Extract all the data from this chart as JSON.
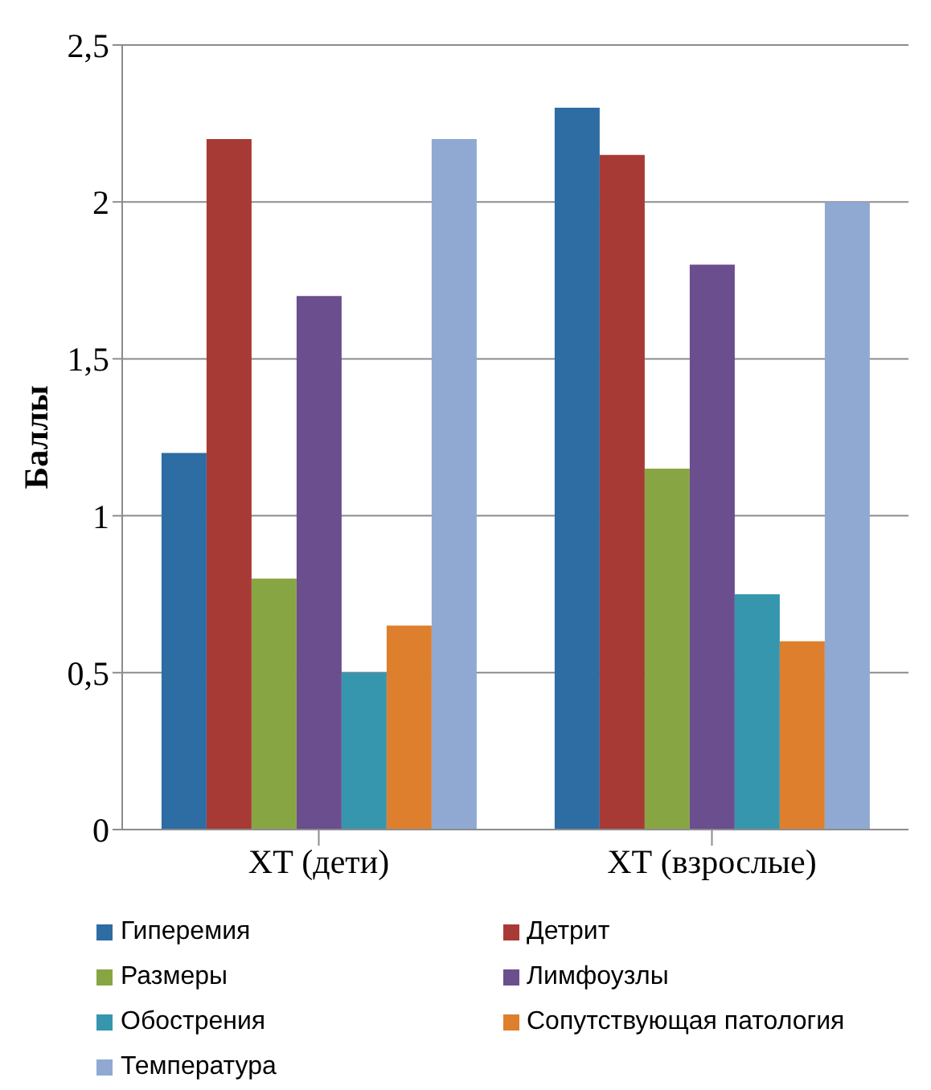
{
  "chart_data": {
    "type": "bar",
    "ylabel": "Баллы",
    "categories": [
      "ХТ (дети)",
      "ХТ (взрослые)"
    ],
    "series": [
      {
        "name": "Гиперемия",
        "color": "#2e6ca4",
        "values": [
          1.2,
          2.3
        ]
      },
      {
        "name": "Детрит",
        "color": "#a83a36",
        "values": [
          2.2,
          2.15
        ]
      },
      {
        "name": "Размеры",
        "color": "#88a544",
        "values": [
          0.8,
          1.15
        ]
      },
      {
        "name": "Лимфоузлы",
        "color": "#6b4e8e",
        "values": [
          1.7,
          1.8
        ]
      },
      {
        "name": "Обострения",
        "color": "#3596ae",
        "values": [
          0.5,
          0.75
        ]
      },
      {
        "name": "Сопутствующая патология",
        "color": "#de7f2e",
        "values": [
          0.65,
          0.6
        ]
      },
      {
        "name": "Температура",
        "color": "#8fa9d3",
        "values": [
          2.2,
          2.0
        ]
      }
    ],
    "ylim": [
      0,
      2.5
    ],
    "yticks": [
      {
        "value": 0,
        "label": "0"
      },
      {
        "value": 0.5,
        "label": "0,5"
      },
      {
        "value": 1,
        "label": "1"
      },
      {
        "value": 1.5,
        "label": "1,5"
      },
      {
        "value": 2,
        "label": "2"
      },
      {
        "value": 2.5,
        "label": "2,5"
      }
    ],
    "grid": "y",
    "legend": "bottom"
  }
}
